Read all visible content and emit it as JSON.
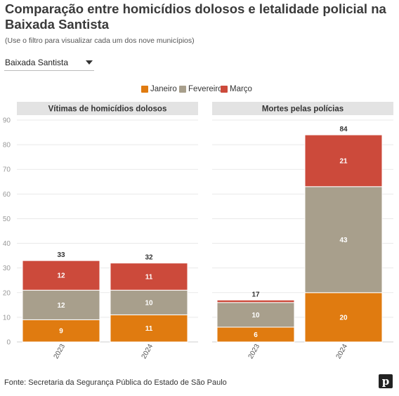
{
  "title": "Comparação entre homicídios dolosos e letalidade policial na Baixada Santista",
  "subtitle": "(Use o filtro para visualizar cada um dos nove municípios)",
  "filter": {
    "selected": "Baixada Santista"
  },
  "legend": [
    {
      "label": "Janeiro",
      "color": "#e07b10"
    },
    {
      "label": "Fevereiro",
      "color": "#a89f8c"
    },
    {
      "label": "Março",
      "color": "#cc4a3b"
    }
  ],
  "chart_data": {
    "type": "bar",
    "stacked": true,
    "y_ticks": [
      0,
      10,
      20,
      30,
      40,
      50,
      60,
      70,
      80,
      90
    ],
    "ylim": [
      0,
      90
    ],
    "grid": true,
    "legend_position": "top-center",
    "panels": [
      {
        "title": "Vítimas de homicídios dolosos",
        "categories": [
          "2023",
          "2024"
        ],
        "series": [
          {
            "name": "Janeiro",
            "values": [
              9,
              11
            ]
          },
          {
            "name": "Fevereiro",
            "values": [
              12,
              10
            ]
          },
          {
            "name": "Março",
            "values": [
              12,
              11
            ]
          }
        ],
        "totals": [
          33,
          32
        ]
      },
      {
        "title": "Mortes pelas polícias",
        "categories": [
          "2023",
          "2024"
        ],
        "series": [
          {
            "name": "Janeiro",
            "values": [
              6,
              20
            ]
          },
          {
            "name": "Fevereiro",
            "values": [
              10,
              43
            ]
          },
          {
            "name": "Março",
            "values": [
              1,
              21
            ]
          }
        ],
        "totals": [
          17,
          84
        ]
      }
    ]
  },
  "footer": {
    "source": "Fonte: Secretaria da Segurança Pública do Estado de São Paulo"
  },
  "logo": {
    "letter": "p"
  }
}
